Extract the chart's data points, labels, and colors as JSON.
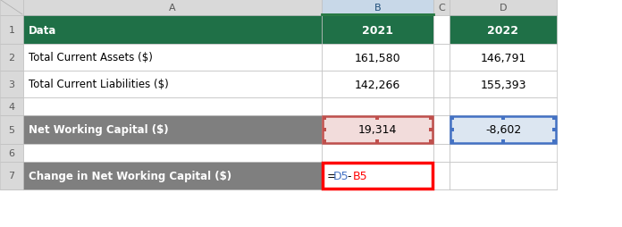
{
  "header_bg": "#1F7047",
  "header_text": "#FFFFFF",
  "gray_bg": "#7F7F7F",
  "gray_text": "#FFFFFF",
  "white_bg": "#FFFFFF",
  "black_text": "#000000",
  "pink_bg": "#F2DCDB",
  "light_blue_bg": "#DCE6F1",
  "red_border": "#C0504D",
  "red_border_formula": "#FF0000",
  "blue_border": "#4472C4",
  "col_header_bg": "#D9D9D9",
  "grid_line_color": "#BFBFBF",
  "rows": [
    {
      "label": "1",
      "A_text": "Data",
      "B_text": "2021",
      "D_text": "2022",
      "A_style": "header",
      "B_style": "header",
      "D_style": "header"
    },
    {
      "label": "2",
      "A_text": "Total Current Assets ($)",
      "B_text": "161,580",
      "D_text": "146,791",
      "A_style": "normal",
      "B_style": "normal_right",
      "D_style": "normal_right"
    },
    {
      "label": "3",
      "A_text": "Total Current Liabilities ($)",
      "B_text": "142,266",
      "D_text": "155,393",
      "A_style": "normal",
      "B_style": "normal_right",
      "D_style": "normal_right"
    },
    {
      "label": "4",
      "A_text": "",
      "B_text": "",
      "D_text": "",
      "A_style": "empty",
      "B_style": "empty",
      "D_style": "empty"
    },
    {
      "label": "5",
      "A_text": "Net Working Capital ($)",
      "B_text": "19,314",
      "D_text": "-8,602",
      "A_style": "gray",
      "B_style": "pink_red_border",
      "D_style": "blue_blue_border"
    },
    {
      "label": "6",
      "A_text": "",
      "B_text": "",
      "D_text": "",
      "A_style": "empty",
      "B_style": "empty",
      "D_style": "empty"
    },
    {
      "label": "7",
      "A_text": "Change in Net Working Capital ($)",
      "B_text": "=D5-B5",
      "D_text": "",
      "A_style": "gray",
      "B_style": "formula_red_border",
      "D_style": "empty"
    }
  ],
  "figsize": [
    6.96,
    2.55
  ],
  "dpi": 100
}
